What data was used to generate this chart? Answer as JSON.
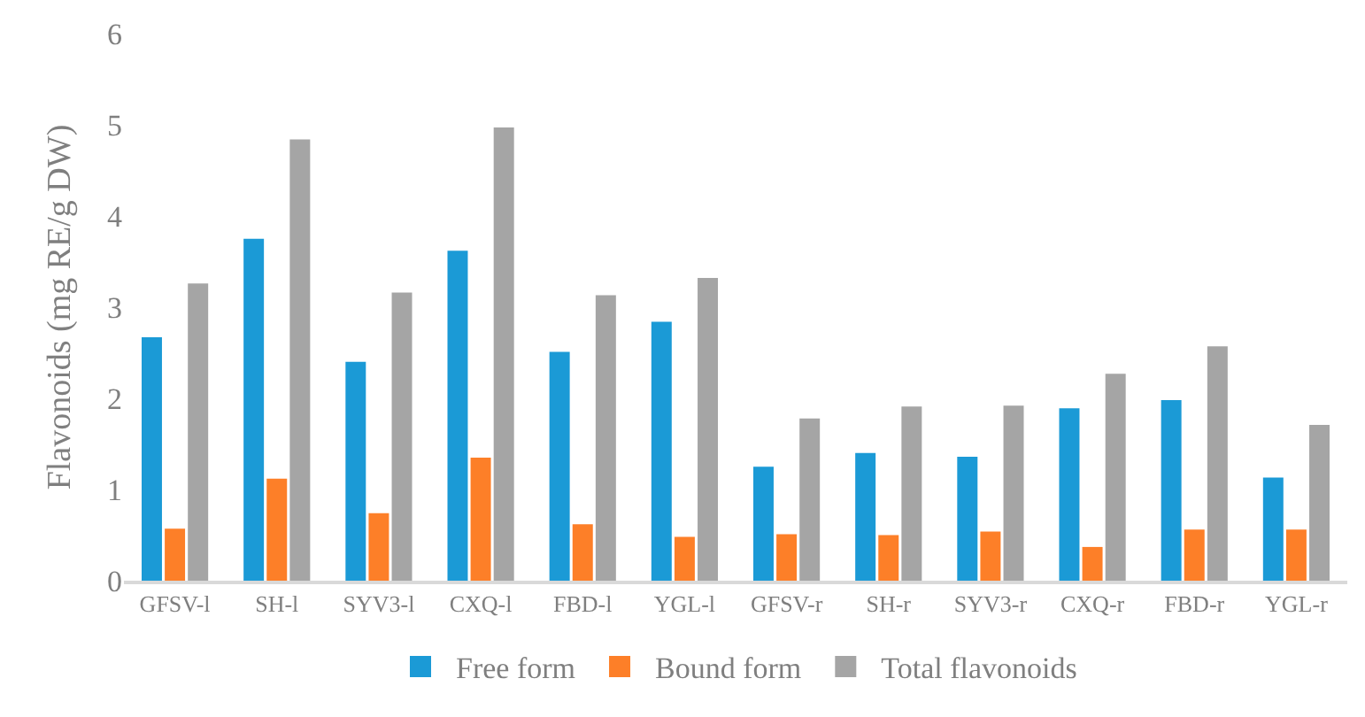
{
  "chart_data": {
    "type": "bar",
    "ylabel": "Flavonoids (mg RE/g DW)",
    "categories": [
      "GFSV-l",
      "SH-l",
      "SYV3-l",
      "CXQ-l",
      "FBD-l",
      "YGL-l",
      "GFSV-r",
      "SH-r",
      "SYV3-r",
      "CXQ-r",
      "FBD-r",
      "YGL-r"
    ],
    "series": [
      {
        "name": "Free form",
        "color": "#1b9ad6",
        "values": [
          2.67,
          3.75,
          2.4,
          3.62,
          2.51,
          2.84,
          1.25,
          1.4,
          1.36,
          1.89,
          1.98,
          1.13
        ]
      },
      {
        "name": "Bound form",
        "color": "#fd7f28",
        "values": [
          0.57,
          1.12,
          0.74,
          1.35,
          0.62,
          0.48,
          0.51,
          0.5,
          0.54,
          0.37,
          0.56,
          0.56
        ]
      },
      {
        "name": "Total flavonoids",
        "color": "#a5a5a5",
        "values": [
          3.26,
          4.84,
          3.16,
          4.97,
          3.13,
          3.32,
          1.78,
          1.91,
          1.92,
          2.27,
          2.57,
          1.71
        ]
      }
    ],
    "ylim": [
      0,
      6
    ],
    "yticks": [
      0,
      1,
      2,
      3,
      4,
      5,
      6
    ],
    "legend": "bottom"
  }
}
